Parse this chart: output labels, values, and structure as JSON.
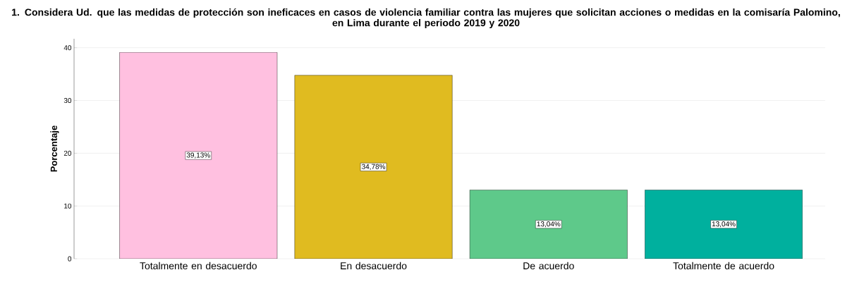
{
  "chart_data": {
    "type": "bar",
    "title": "1. Considera Ud. que las medidas de protección son ineficaces en casos de violencia familiar contra las mujeres que solicitan acciones o medidas en la comisaría Palomino, en Lima durante el periodo 2019 y 2020",
    "ylabel": "Porcentaje",
    "categories": [
      "Totalmente en desacuerdo",
      "En desacuerdo",
      "De acuerdo",
      "Totalmente de acuerdo"
    ],
    "values": [
      39.13,
      34.78,
      13.04,
      13.04
    ],
    "colors": [
      "#ffc0e0",
      "#e0bb20",
      "#5ec98a",
      "#00b09e"
    ],
    "value_labels": [
      "39,13%",
      "34,78%",
      "13,04%",
      "13,04%"
    ],
    "ylim": [
      0,
      41.7
    ],
    "yticks": [
      0,
      10,
      20,
      30,
      40
    ],
    "grid": "y"
  }
}
